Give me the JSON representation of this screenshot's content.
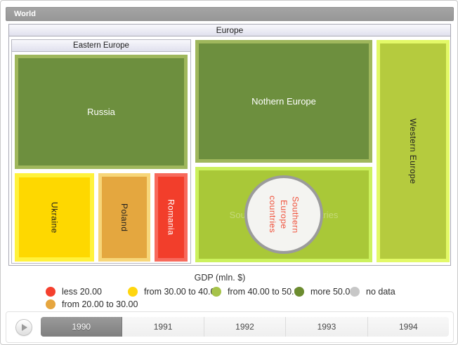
{
  "breadcrumb": {
    "label": "World"
  },
  "chart_data": {
    "type": "treemap",
    "title": "GDP (mln. $)",
    "breadcrumb": "World",
    "tree": {
      "name": "Europe",
      "children": [
        {
          "name": "Eastern Europe",
          "children": [
            {
              "name": "Russia",
              "color_category": "more 50.00"
            },
            {
              "name": "Ukraine",
              "color_category": "from 30.00 to 40.00"
            },
            {
              "name": "Poland",
              "color_category": "from 20.00 to 30.00"
            },
            {
              "name": "Romania",
              "color_category": "less 20.00"
            }
          ]
        },
        {
          "name": "Nothern Europe",
          "color_category": "more 50.00"
        },
        {
          "name": "Southern Europe countries",
          "color_category": "from 40.00 to 50.00",
          "label_lines": [
            "Southern",
            "Europe",
            "countries"
          ]
        },
        {
          "name": "Western Europe",
          "color_category": "from 40.00 to 50.00"
        }
      ]
    },
    "legend": {
      "title": "GDP (mln. $)",
      "position": "bottom",
      "items": [
        {
          "label": "less 20.00",
          "color": "#f5402e"
        },
        {
          "label": "from 30.00 to 40.00",
          "color": "#ffd60f"
        },
        {
          "label": "from 40.00 to 50.00",
          "color": "#a6c34a"
        },
        {
          "label": "more 50.00",
          "color": "#6c8c2f"
        },
        {
          "label": "no data",
          "color": "#c7c7c7"
        },
        {
          "label": "from 20.00 to 30.00",
          "color": "#e6a63f"
        }
      ]
    },
    "timeline": {
      "years": [
        "1990",
        "1991",
        "1992",
        "1993",
        "1994"
      ],
      "selected": "1990"
    }
  }
}
